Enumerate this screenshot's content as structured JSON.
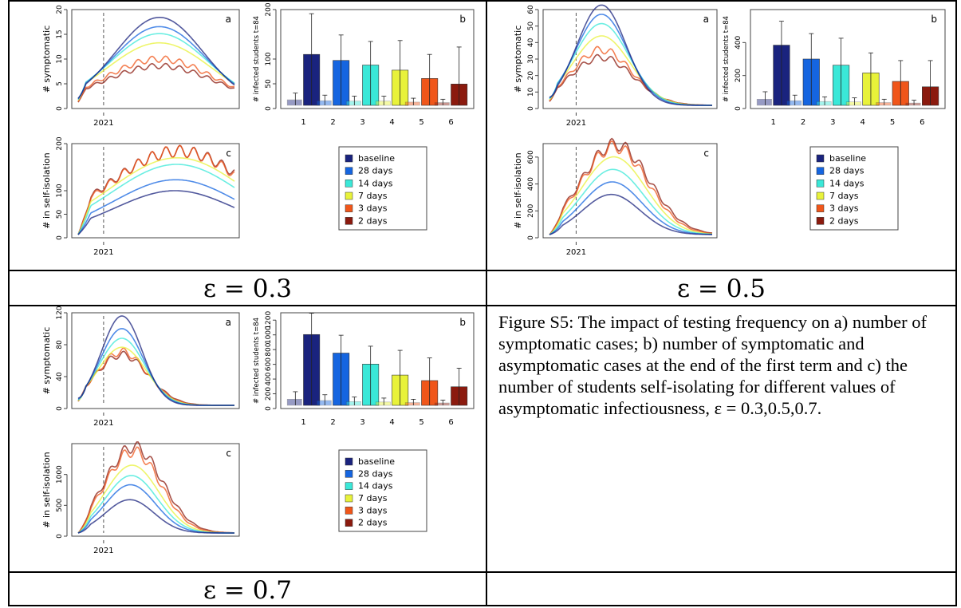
{
  "legend": [
    "baseline",
    "28 days",
    "14 days",
    "7 days",
    "3 days",
    "2 days"
  ],
  "colors": [
    "#1a237e",
    "#1565e0",
    "#3ae8d8",
    "#e8f23a",
    "#f0561a",
    "#8b1a0e"
  ],
  "panel_labels": {
    "a": "a",
    "b": "b",
    "c": "c"
  },
  "axis_labels": {
    "symptomatic": "# symptomatic",
    "infected": "# infected students t=84",
    "isolation": "# in self-isolation",
    "year": "2021"
  },
  "bar_categories": [
    "1",
    "2",
    "3",
    "4",
    "5",
    "6"
  ],
  "eps_labels": [
    "ε = 0.3",
    "ε = 0.5",
    "ε = 0.7"
  ],
  "caption": "Figure S5: The impact of testing frequency on a) number of symptomatic cases; b) number of symptomatic and asymptomatic cases at the end of the first term  and c) the number of students self-isolating for different values of asymptomatic infectiousness, ε = 0.3,0.5,0.7.",
  "chart_data": [
    {
      "type": "line",
      "panel": "a",
      "eps": "0.3",
      "ylabel": "# symptomatic",
      "xtick": "2021",
      "ylim": [
        0,
        20
      ],
      "yticks": [
        0,
        5,
        10,
        15,
        20
      ],
      "series_peaks": [
        19,
        17,
        15.5,
        13.5,
        10,
        8.5
      ]
    },
    {
      "type": "bar",
      "panel": "b",
      "eps": "0.3",
      "ylabel": "# infected students t=84",
      "categories": [
        "1",
        "2",
        "3",
        "4",
        "5",
        "6"
      ],
      "values": [
        110,
        97,
        87,
        76,
        58,
        46
      ],
      "asym_values": [
        12,
        10,
        9,
        9,
        7,
        6
      ],
      "err_upper": [
        198,
        152,
        138,
        140,
        110,
        126
      ],
      "ylim": [
        0,
        200
      ],
      "yticks": [
        0,
        50,
        100,
        200
      ]
    },
    {
      "type": "line",
      "panel": "c",
      "eps": "0.3",
      "ylabel": "# in self-isolation",
      "xtick": "2021",
      "ylim": [
        0,
        200
      ],
      "yticks": [
        0,
        50,
        100,
        200
      ],
      "series_peaks": [
        100,
        125,
        160,
        175,
        190,
        190
      ]
    },
    {
      "type": "line",
      "panel": "a",
      "eps": "0.5",
      "ylabel": "# symptomatic",
      "xtick": "2021",
      "ylim": [
        0,
        60
      ],
      "yticks": [
        0,
        10,
        20,
        30,
        40,
        50,
        60
      ],
      "series_peaks": [
        65,
        59,
        53,
        45,
        36,
        31
      ]
    },
    {
      "type": "bar",
      "panel": "b",
      "eps": "0.5",
      "ylabel": "# infected students t=84",
      "categories": [
        "1",
        "2",
        "3",
        "4",
        "5",
        "6"
      ],
      "values": [
        390,
        300,
        260,
        210,
        155,
        120
      ],
      "asym_values": [
        40,
        30,
        25,
        22,
        18,
        15
      ],
      "err_upper": [
        545,
        465,
        435,
        340,
        290,
        290
      ],
      "ylim": [
        0,
        600
      ],
      "yticks": [
        0,
        200,
        400
      ]
    },
    {
      "type": "line",
      "panel": "c",
      "eps": "0.5",
      "ylabel": "# in self-isolation",
      "xtick": "2021",
      "ylim": [
        0,
        700
      ],
      "yticks": [
        0,
        200,
        400,
        600
      ],
      "series_peaks": [
        320,
        420,
        520,
        620,
        700,
        720
      ]
    },
    {
      "type": "line",
      "panel": "a",
      "eps": "0.7",
      "ylabel": "# symptomatic",
      "xtick": "2021",
      "ylim": [
        0,
        120
      ],
      "yticks": [
        0,
        40,
        80,
        120
      ],
      "series_peaks": [
        120,
        103,
        90,
        78,
        72,
        68
      ]
    },
    {
      "type": "bar",
      "panel": "b",
      "eps": "0.7",
      "ylabel": "# infected students t=84",
      "categories": [
        "1",
        "2",
        "3",
        "4",
        "5",
        "6"
      ],
      "values": [
        1030,
        760,
        600,
        440,
        360,
        270
      ],
      "asym_values": [
        90,
        70,
        55,
        48,
        40,
        35
      ],
      "err_upper": [
        1340,
        1020,
        860,
        800,
        690,
        540
      ],
      "ylim": [
        0,
        1300
      ],
      "yticks": [
        0,
        200,
        400,
        600,
        800,
        1000,
        1200
      ]
    },
    {
      "type": "line",
      "panel": "c",
      "eps": "0.7",
      "ylabel": "# in self-isolation",
      "xtick": "2021",
      "ylim": [
        0,
        1500
      ],
      "yticks": [
        0,
        500,
        1000
      ],
      "series_peaks": [
        580,
        840,
        1000,
        1180,
        1420,
        1500
      ]
    }
  ]
}
